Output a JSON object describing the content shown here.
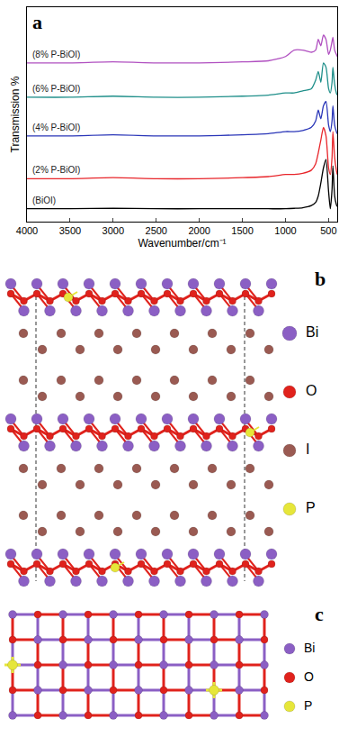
{
  "chart_data": {
    "type": "line",
    "x_label": "Wavenumber/cm⁻¹",
    "y_label": "Transmission %",
    "x": [
      4000,
      3500,
      3000,
      2500,
      2000,
      1500,
      1200,
      1000,
      900,
      800,
      700,
      650,
      620,
      590,
      560,
      530,
      500,
      480,
      460,
      450,
      430,
      410,
      400
    ],
    "series": [
      {
        "name": "(BiOI)",
        "color": "#000000",
        "values": [
          6,
          6,
          6.2,
          6,
          6,
          6,
          6,
          6,
          6.2,
          6.5,
          7.5,
          9,
          12,
          18,
          25,
          29,
          14,
          6,
          15,
          26,
          12,
          8,
          7
        ]
      },
      {
        "name": "(2% P-BiOI)",
        "color": "#e8252a",
        "values": [
          20,
          20,
          20.5,
          20,
          20,
          20.5,
          21,
          22,
          22,
          22.5,
          24,
          27,
          32,
          38,
          44,
          40,
          25,
          22,
          30,
          42,
          30,
          24,
          22
        ]
      },
      {
        "name": "(4% P-BiOI)",
        "color": "#2a36b8",
        "values": [
          40,
          40,
          40.5,
          40,
          40,
          40.5,
          41,
          42,
          42,
          42.5,
          44,
          47,
          52,
          48,
          54,
          56,
          45,
          42,
          47,
          54,
          45,
          42,
          41
        ]
      },
      {
        "name": "(6% P-BiOI)",
        "color": "#1f8f8a",
        "values": [
          58,
          58,
          58.5,
          58,
          58,
          58.5,
          59,
          60,
          60,
          61,
          62,
          66,
          70,
          65,
          74,
          72,
          62,
          60,
          65,
          72,
          64,
          60,
          59
        ]
      },
      {
        "name": "(8% P-BiOI)",
        "color": "#b04fc0",
        "values": [
          74,
          74,
          74.5,
          74,
          74,
          74.5,
          75,
          77,
          80,
          80,
          79,
          80,
          85,
          82,
          87,
          85,
          78,
          80,
          84,
          86,
          80,
          78,
          77
        ]
      }
    ],
    "xlim": [
      4000,
      400
    ],
    "xticks": [
      4000,
      3500,
      3000,
      2500,
      2000,
      1500,
      1000,
      500
    ],
    "ylim": [
      0,
      100
    ],
    "yticks": [],
    "tick_labels": "x",
    "grid": false
  },
  "figure": {
    "panel_a": {
      "label": "a"
    },
    "panel_b": {
      "label": "b",
      "legend": [
        {
          "text": "Bi",
          "color": "#8b5fc4"
        },
        {
          "text": "O",
          "color": "#e0221c"
        },
        {
          "text": "I",
          "color": "#9a5a52"
        },
        {
          "text": "P",
          "color": "#e6e63a"
        }
      ]
    },
    "panel_c": {
      "label": "c",
      "legend": [
        {
          "text": "Bi",
          "color": "#8b5fc4"
        },
        {
          "text": "O",
          "color": "#e0221c"
        },
        {
          "text": "P",
          "color": "#e6e63a"
        }
      ]
    }
  }
}
